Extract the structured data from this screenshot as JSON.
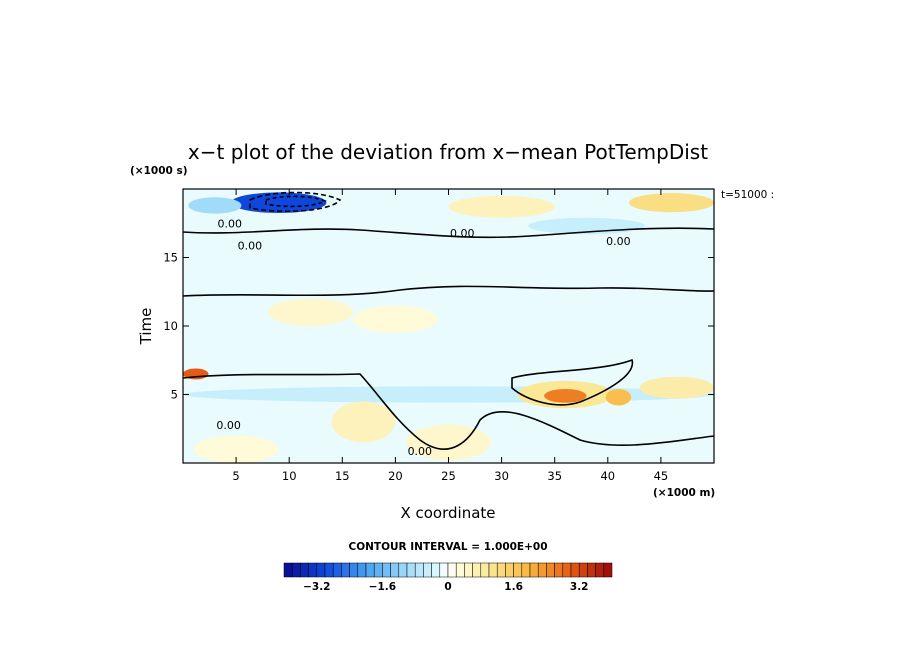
{
  "chart_data": {
    "type": "heatmap",
    "title": "x−t plot of the deviation from x−mean PotTempDist",
    "xlabel": "X coordinate",
    "ylabel": "Time",
    "x_unit": "(×1000 m)",
    "y_unit": "(×1000 s)",
    "time_stamp": "t=51000 :",
    "xlim": [
      0,
      50
    ],
    "ylim": [
      0,
      20
    ],
    "x_ticks": [
      5,
      10,
      15,
      20,
      25,
      30,
      35,
      40,
      45
    ],
    "y_ticks": [
      5,
      10,
      15
    ],
    "contour_interval_text": "CONTOUR INTERVAL = 1.000E+00",
    "contour_labels": [
      {
        "text": "0.00",
        "x": 4.4,
        "y": 17.2
      },
      {
        "text": "0.00",
        "x": 6.3,
        "y": 15.6
      },
      {
        "text": "0.00",
        "x": 26.3,
        "y": 16.5
      },
      {
        "text": "0.00",
        "x": 41.0,
        "y": 15.9
      },
      {
        "text": "0.00",
        "x": 4.3,
        "y": 2.5
      },
      {
        "text": "0.00",
        "x": 22.3,
        "y": 0.6
      }
    ],
    "anomalies": [
      {
        "x": 9,
        "y": 19.0,
        "rx": 4.5,
        "ry": 0.75,
        "value": -3.0
      },
      {
        "x": 3,
        "y": 18.8,
        "rx": 2.5,
        "ry": 0.6,
        "value": -1.0
      },
      {
        "x": 38,
        "y": 17.3,
        "rx": 5.5,
        "ry": 0.6,
        "value": -0.5
      },
      {
        "x": 30,
        "y": 18.7,
        "rx": 5.0,
        "ry": 0.8,
        "value": 0.6
      },
      {
        "x": 46,
        "y": 19.0,
        "rx": 4.0,
        "ry": 0.7,
        "value": 1.2
      },
      {
        "x": 25,
        "y": 5.0,
        "rx": 25,
        "ry": 0.6,
        "value": -0.5
      },
      {
        "x": 36,
        "y": 5.0,
        "rx": 4.5,
        "ry": 1.0,
        "value": 1.0
      },
      {
        "x": 36,
        "y": 4.9,
        "rx": 2.0,
        "ry": 0.5,
        "value": 2.6
      },
      {
        "x": 41,
        "y": 4.8,
        "rx": 1.2,
        "ry": 0.6,
        "value": 1.8
      },
      {
        "x": 46.5,
        "y": 5.5,
        "rx": 3.5,
        "ry": 0.8,
        "value": 0.8
      },
      {
        "x": 1.2,
        "y": 6.5,
        "rx": 1.2,
        "ry": 0.4,
        "value": 3.0
      },
      {
        "x": 17,
        "y": 3.0,
        "rx": 3.0,
        "ry": 1.5,
        "value": 0.6
      },
      {
        "x": 25,
        "y": 1.5,
        "rx": 4.0,
        "ry": 1.3,
        "value": 0.4
      },
      {
        "x": 5,
        "y": 1.0,
        "rx": 4.0,
        "ry": 1.0,
        "value": 0.3
      },
      {
        "x": 12,
        "y": 11.0,
        "rx": 4.0,
        "ry": 1.0,
        "value": 0.4
      },
      {
        "x": 20,
        "y": 10.5,
        "rx": 4.0,
        "ry": 1.0,
        "value": 0.3
      }
    ],
    "colorbar": {
      "min": -4.0,
      "max": 4.0,
      "step": 0.2,
      "tick_values": [
        -3.2,
        -1.6,
        0,
        1.6,
        3.2
      ],
      "tick_labels": [
        "−3.2",
        "−1.6",
        "0",
        "1.6",
        "3.2"
      ]
    }
  }
}
